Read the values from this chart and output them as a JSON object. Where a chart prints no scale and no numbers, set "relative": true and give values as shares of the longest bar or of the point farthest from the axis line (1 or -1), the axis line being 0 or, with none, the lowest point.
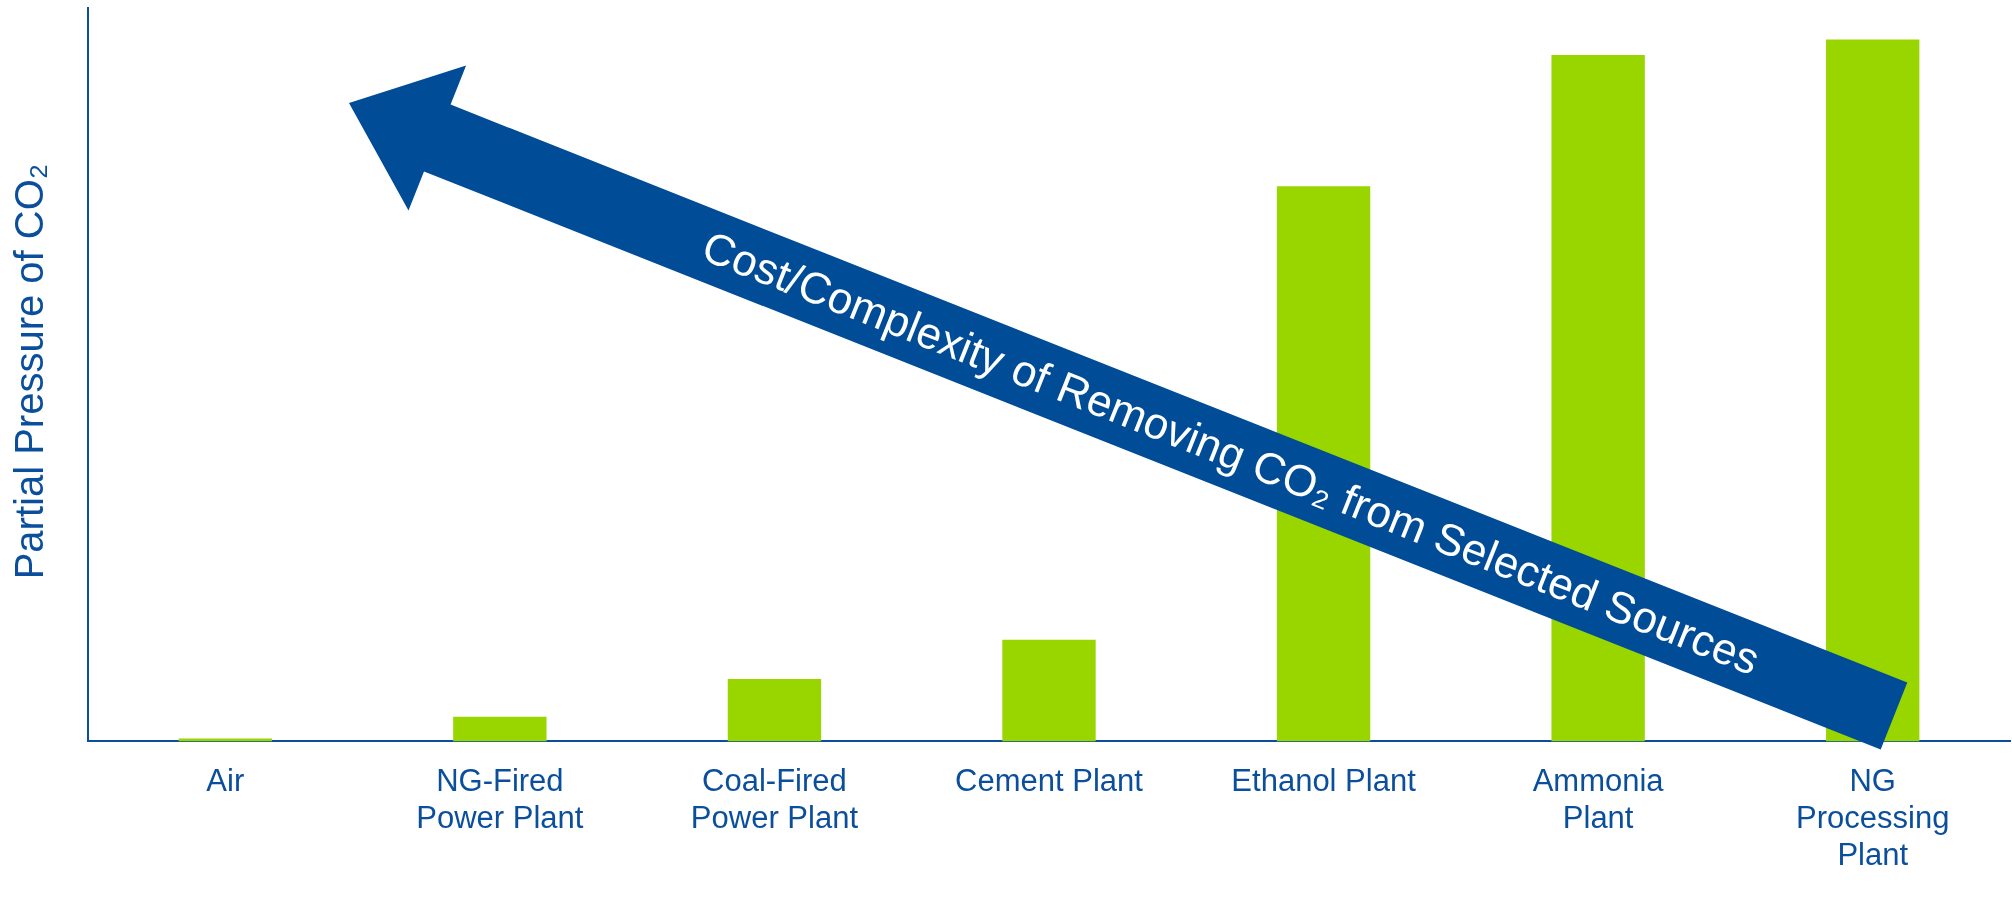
{
  "chart_data": {
    "type": "bar",
    "relative": true,
    "ylabel": "Partial Pressure of CO₂",
    "categories": [
      "Air",
      "NG-Fired\nPower Plant",
      "Coal-Fired\nPower Plant",
      "Cement Plant",
      "Ethanol Plant",
      "Ammonia\nPlant",
      "NG\nProcessing\nPlant"
    ],
    "values": [
      0.004,
      0.035,
      0.089,
      0.145,
      0.791,
      0.978,
      1
    ],
    "color": "#99d600",
    "grid": false,
    "legend": false,
    "annotations": [
      "Cost/Complexity of Removing CO₂ from Selected Sources"
    ]
  }
}
